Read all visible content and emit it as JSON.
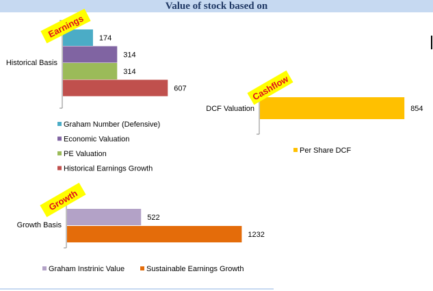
{
  "page": {
    "title": "Value of stock based on"
  },
  "colors": {
    "graham_number": "#4bacc6",
    "economic_valuation": "#8064a2",
    "pe_valuation": "#9bbb59",
    "historical_earnings_growth": "#c0504d",
    "per_share_dcf": "#ffc000",
    "graham_intrinsic_value": "#b3a2c7",
    "sustainable_earnings_growth": "#e46c0a",
    "tag_fill": "#ffff00",
    "tag_text": "#e0101a"
  },
  "chart_data": [
    {
      "type": "bar",
      "orientation": "horizontal",
      "tag": "Earnings",
      "categories": [
        "Historical Basis"
      ],
      "series": [
        {
          "name": "Graham Number (Defensive)",
          "values": [
            174
          ]
        },
        {
          "name": "Economic Valuation",
          "values": [
            314
          ]
        },
        {
          "name": "PE Valuation",
          "values": [
            314
          ]
        },
        {
          "name": "Historical Earnings Growth",
          "values": [
            607
          ]
        }
      ],
      "legend": "bottom"
    },
    {
      "type": "bar",
      "orientation": "horizontal",
      "tag": "Cashflow",
      "categories": [
        "DCF Valuation"
      ],
      "series": [
        {
          "name": "Per Share DCF",
          "values": [
            854
          ]
        }
      ],
      "legend": "bottom"
    },
    {
      "type": "bar",
      "orientation": "horizontal",
      "tag": "Growth",
      "categories": [
        "Growth Basis"
      ],
      "series": [
        {
          "name": "Graham Instrinic Value",
          "values": [
            522
          ]
        },
        {
          "name": "Sustainable Earnings Growth",
          "values": [
            1232
          ]
        }
      ],
      "legend": "bottom"
    }
  ]
}
